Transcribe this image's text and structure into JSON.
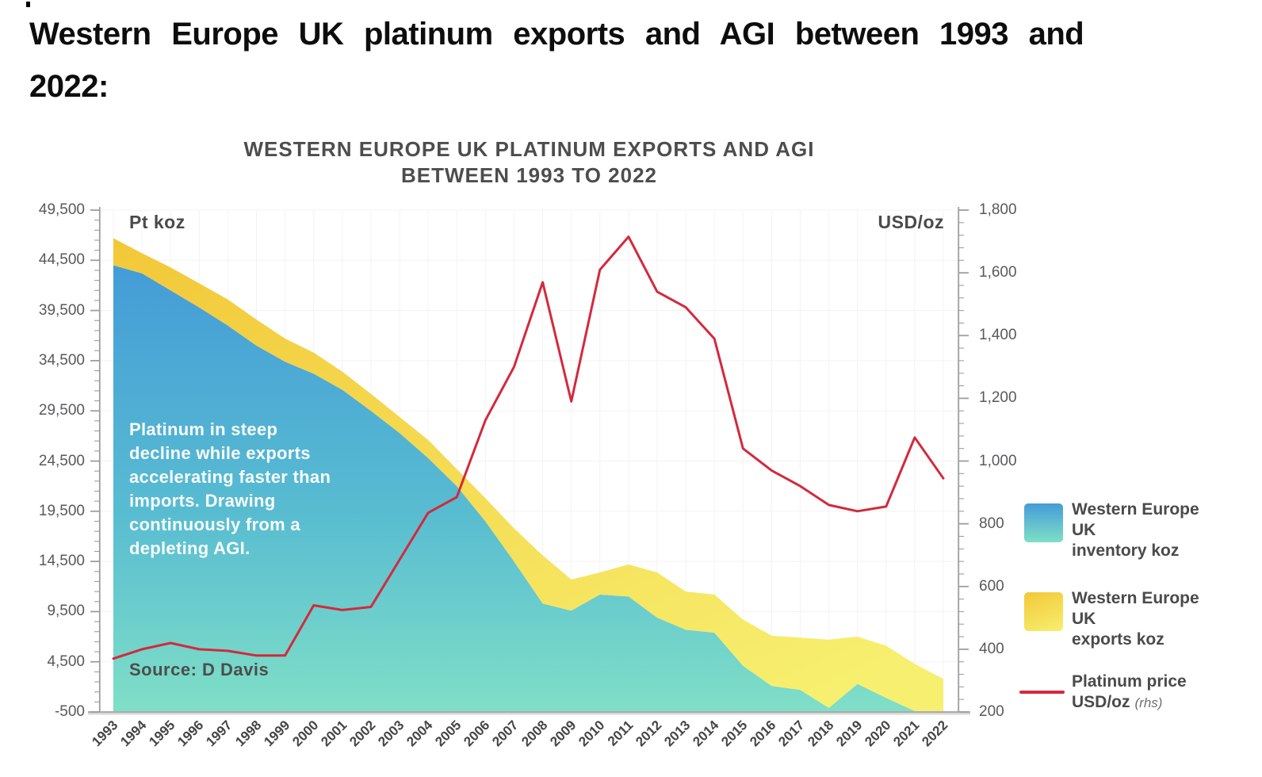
{
  "page_title": {
    "line1": "Western Europe UK platinum exports and AGI between 1993 and",
    "line2": "2022:"
  },
  "chart": {
    "title_line1": "WESTERN EUROPE UK PLATINUM EXPORTS AND AGI",
    "title_line2": "BETWEEN 1993 TO 2022",
    "left_axis_unit": "Pt koz",
    "right_axis_unit": "USD/oz",
    "annotation": "Platinum in steep decline while exports accelerating faster than imports. Drawing continuously from a depleting AGI.",
    "source": "Source: D Davis",
    "legend": [
      {
        "swatch": "inventory-gradient-swatch",
        "lines": [
          "Western Europe",
          "UK",
          "inventory koz"
        ]
      },
      {
        "swatch": "exports-gradient-swatch",
        "lines": [
          "Western Europe",
          "UK",
          "exports koz"
        ]
      },
      {
        "swatch": "price-line-swatch",
        "lines": [
          "Platinum price",
          "USD/oz"
        ],
        "suffix": "(rhs)"
      }
    ]
  },
  "chart_data": {
    "type": "area",
    "x": [
      1993,
      1994,
      1995,
      1996,
      1997,
      1998,
      1999,
      2000,
      2001,
      2002,
      2003,
      2004,
      2005,
      2006,
      2007,
      2008,
      2009,
      2010,
      2011,
      2012,
      2013,
      2014,
      2015,
      2016,
      2017,
      2018,
      2019,
      2020,
      2021,
      2022
    ],
    "series": [
      {
        "name": "Western Europe UK inventory koz",
        "type": "area",
        "axis": "left",
        "values": [
          44000,
          43200,
          41500,
          39800,
          38000,
          36000,
          34400,
          33200,
          31600,
          29500,
          27300,
          24800,
          22000,
          18500,
          14500,
          10300,
          9600,
          11200,
          11000,
          8900,
          7700,
          7400,
          4100,
          2100,
          1700,
          -100,
          2300,
          900,
          -400,
          -500
        ]
      },
      {
        "name": "Western Europe UK exports koz",
        "type": "area-stacked",
        "axis": "left",
        "values": [
          2700,
          2000,
          2300,
          2400,
          2600,
          2600,
          2300,
          2100,
          1800,
          1700,
          1600,
          1800,
          1700,
          2300,
          3300,
          4800,
          3100,
          2200,
          3200,
          4500,
          3800,
          3800,
          4600,
          5000,
          5200,
          6800,
          4700,
          5200,
          4700,
          3300
        ]
      },
      {
        "name": "Platinum price USD/oz",
        "type": "line",
        "axis": "right",
        "values": [
          370,
          400,
          420,
          400,
          395,
          380,
          380,
          540,
          525,
          535,
          685,
          835,
          885,
          1130,
          1300,
          1570,
          1190,
          1610,
          1715,
          1540,
          1490,
          1390,
          1040,
          970,
          920,
          860,
          840,
          855,
          1075,
          945
        ]
      }
    ],
    "left_axis": {
      "min": -500,
      "max": 49500,
      "tick_step": 5000,
      "minor_step": 1000,
      "tick_labels": [
        "49,500",
        "44,500",
        "39,500",
        "34,500",
        "29,500",
        "24,500",
        "19,500",
        "14,500",
        "9,500",
        "4,500",
        "-500"
      ]
    },
    "right_axis": {
      "min": 200,
      "max": 1800,
      "tick_step": 200,
      "minor_step": 40,
      "tick_labels": [
        "1,800",
        "1,600",
        "1,400",
        "1,200",
        "1,000",
        "800",
        "600",
        "400",
        "200"
      ]
    },
    "grid": "faint",
    "legend_position": "right",
    "colors": {
      "inventory_top": "#449CD7",
      "inventory_mid": "#58BCD1",
      "inventory_bottom": "#7FDFC7",
      "exports_start": "#F2C838",
      "exports_end": "#F7EF6F",
      "price_line": "#D4293C",
      "axis": "#9E9E9E",
      "axis_shadow": "#D8D8D8",
      "tick_text": "#58595b",
      "gridline": "#F3F3F3"
    }
  }
}
